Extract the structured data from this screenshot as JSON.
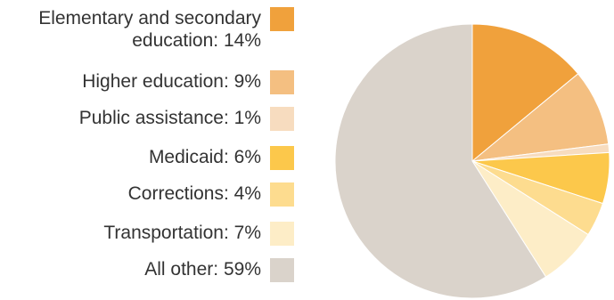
{
  "chart_data": {
    "type": "pie",
    "title": "",
    "legend_position": "left",
    "start_angle_deg": 0,
    "direction": "clockwise",
    "categories": [
      "Elementary and secondary education: 14%",
      "Higher education: 9%",
      "Public assistance: 1%",
      "Medicaid: 6%",
      "Corrections: 4%",
      "Transportation: 7%",
      "All other: 59%"
    ],
    "values": [
      14,
      9,
      1,
      6,
      4,
      7,
      59
    ],
    "colors": [
      "#f0a13c",
      "#f4bf81",
      "#f7dcbf",
      "#fcc84b",
      "#fddc8f",
      "#fdedc7",
      "#dad3cb"
    ]
  }
}
